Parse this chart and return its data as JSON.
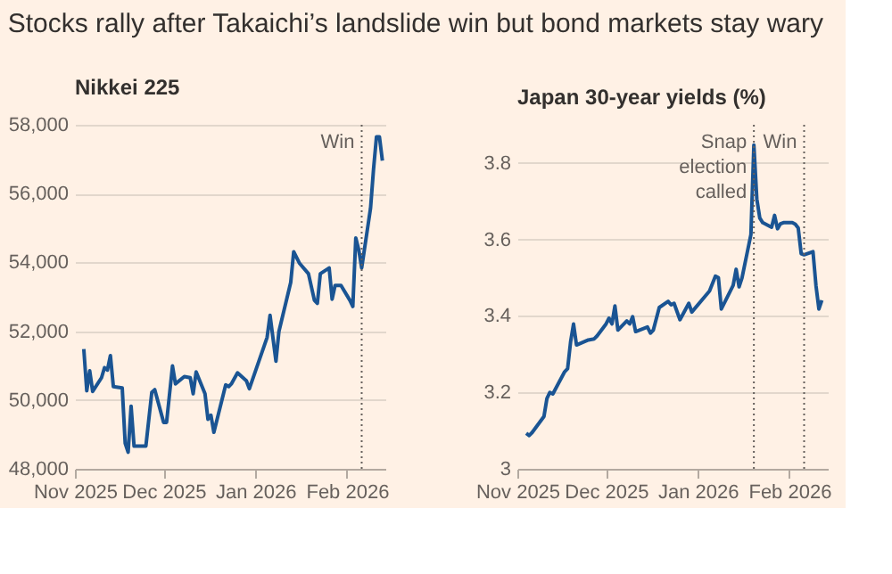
{
  "chart_data": [
    {
      "type": "line",
      "title": "Stocks rally after Takaichi’s landslide win but bond markets stay wary",
      "ylabel": "Nikkei 225",
      "x": [
        "2025-11-04",
        "2025-11-05",
        "2025-11-06",
        "2025-11-07",
        "2025-11-10",
        "2025-11-11",
        "2025-11-12",
        "2025-11-13",
        "2025-11-14",
        "2025-11-17",
        "2025-11-18",
        "2025-11-19",
        "2025-11-20",
        "2025-11-21",
        "2025-11-25",
        "2025-11-27",
        "2025-11-28",
        "2025-12-01",
        "2025-12-02",
        "2025-12-04",
        "2025-12-05",
        "2025-12-08",
        "2025-12-10",
        "2025-12-11",
        "2025-12-12",
        "2025-12-15",
        "2025-12-16",
        "2025-12-17",
        "2025-12-18",
        "2025-12-22",
        "2025-12-23",
        "2025-12-24",
        "2025-12-26",
        "2025-12-29",
        "2025-12-30",
        "2026-01-05",
        "2026-01-06",
        "2026-01-08",
        "2026-01-09",
        "2026-01-13",
        "2026-01-14",
        "2026-01-16",
        "2026-01-19",
        "2026-01-21",
        "2026-01-22",
        "2026-01-23",
        "2026-01-26",
        "2026-01-27",
        "2026-01-28",
        "2026-01-30",
        "2026-02-02",
        "2026-02-03",
        "2026-02-04",
        "2026-02-05",
        "2026-02-06",
        "2026-02-09",
        "2026-02-10",
        "2026-02-11",
        "2026-02-12",
        "2026-02-13"
      ],
      "series": [
        {
          "color": "#1a5493",
          "values": [
            51480,
            50270,
            50850,
            50250,
            50650,
            50940,
            50870,
            51290,
            50390,
            50350,
            48740,
            48480,
            49820,
            48660,
            48660,
            50220,
            50300,
            49350,
            49350,
            50990,
            50470,
            50680,
            50650,
            50180,
            50820,
            50180,
            49440,
            49560,
            49060,
            50440,
            50390,
            50480,
            50790,
            50560,
            50330,
            51820,
            52460,
            51130,
            51990,
            53420,
            54310,
            53970,
            53670,
            52900,
            52810,
            53670,
            53840,
            52930,
            53330,
            53330,
            52900,
            52720,
            54710,
            54370,
            53840,
            55580,
            56700,
            57650,
            57650,
            56960
          ]
        }
      ],
      "xlim": [
        "2025-11-01",
        "2026-02-14"
      ],
      "xticks": [
        {
          "value": "2025-11-01",
          "label": "Nov 2025"
        },
        {
          "value": "2025-12-01",
          "label": "Dec 2025"
        },
        {
          "value": "2026-01-01",
          "label": "Jan 2026"
        },
        {
          "value": "2026-02-01",
          "label": "Feb 2026"
        }
      ],
      "ylim": [
        48000,
        58000
      ],
      "yticks": [
        {
          "value": 48000,
          "label": "48,000"
        },
        {
          "value": 50000,
          "label": "50,000"
        },
        {
          "value": 52000,
          "label": "52,000"
        },
        {
          "value": 54000,
          "label": "54,000"
        },
        {
          "value": 56000,
          "label": "56,000"
        },
        {
          "value": 58000,
          "label": "58,000"
        }
      ],
      "grid": "y",
      "ref_lines": [
        {
          "axis": "x",
          "value": "2026-02-06",
          "label": "Win",
          "color": "#66605c",
          "line_style": "dotted"
        }
      ]
    },
    {
      "type": "line",
      "ylabel": "Japan 30-year yields (%)",
      "x": [
        "2025-11-04",
        "2025-11-05",
        "2025-11-06",
        "2025-11-10",
        "2025-11-11",
        "2025-11-12",
        "2025-11-13",
        "2025-11-17",
        "2025-11-18",
        "2025-11-19",
        "2025-11-20",
        "2025-11-21",
        "2025-11-25",
        "2025-11-27",
        "2025-11-28",
        "2025-12-01",
        "2025-12-02",
        "2025-12-03",
        "2025-12-04",
        "2025-12-05",
        "2025-12-08",
        "2025-12-09",
        "2025-12-10",
        "2025-12-11",
        "2025-12-15",
        "2025-12-16",
        "2025-12-17",
        "2025-12-19",
        "2025-12-22",
        "2025-12-23",
        "2025-12-24",
        "2025-12-26",
        "2025-12-29",
        "2025-12-30",
        "2026-01-05",
        "2026-01-07",
        "2026-01-08",
        "2026-01-09",
        "2026-01-13",
        "2026-01-14",
        "2026-01-15",
        "2026-01-16",
        "2026-01-19",
        "2026-01-20",
        "2026-01-21",
        "2026-01-22",
        "2026-01-23",
        "2026-01-26",
        "2026-01-27",
        "2026-01-28",
        "2026-01-29",
        "2026-01-30",
        "2026-02-02",
        "2026-02-03",
        "2026-02-04",
        "2026-02-05",
        "2026-02-06",
        "2026-02-09",
        "2026-02-10",
        "2026-02-11",
        "2026-02-12"
      ],
      "series": [
        {
          "color": "#1a5493",
          "values": [
            3.093,
            3.087,
            3.095,
            3.137,
            3.184,
            3.2,
            3.196,
            3.254,
            3.262,
            3.332,
            3.379,
            3.324,
            3.337,
            3.34,
            3.348,
            3.379,
            3.394,
            3.379,
            3.426,
            3.363,
            3.387,
            3.379,
            3.398,
            3.359,
            3.371,
            3.355,
            3.363,
            3.422,
            3.438,
            3.429,
            3.433,
            3.39,
            3.433,
            3.41,
            3.465,
            3.504,
            3.5,
            3.418,
            3.48,
            3.522,
            3.476,
            3.5,
            3.613,
            3.847,
            3.706,
            3.656,
            3.644,
            3.632,
            3.663,
            3.628,
            3.641,
            3.644,
            3.644,
            3.64,
            3.63,
            3.563,
            3.56,
            3.568,
            3.48,
            3.418,
            3.441
          ]
        }
      ],
      "xlim": [
        "2025-11-01",
        "2026-02-14"
      ],
      "xticks": [
        {
          "value": "2025-11-01",
          "label": "Nov 2025"
        },
        {
          "value": "2025-12-01",
          "label": "Dec 2025"
        },
        {
          "value": "2026-01-01",
          "label": "Jan 2026"
        },
        {
          "value": "2026-02-01",
          "label": "Feb 2026"
        }
      ],
      "ylim": [
        3,
        3.9
      ],
      "yticks": [
        3,
        3.2,
        3.4,
        3.6,
        3.8
      ],
      "grid": "y",
      "ref_lines": [
        {
          "axis": "x",
          "value": "2026-01-20",
          "label": "Snap election called",
          "color": "#66605c",
          "line_style": "dotted"
        },
        {
          "axis": "x",
          "value": "2026-02-06",
          "label": "Win",
          "color": "#66605c",
          "line_style": "dotted"
        }
      ]
    }
  ]
}
